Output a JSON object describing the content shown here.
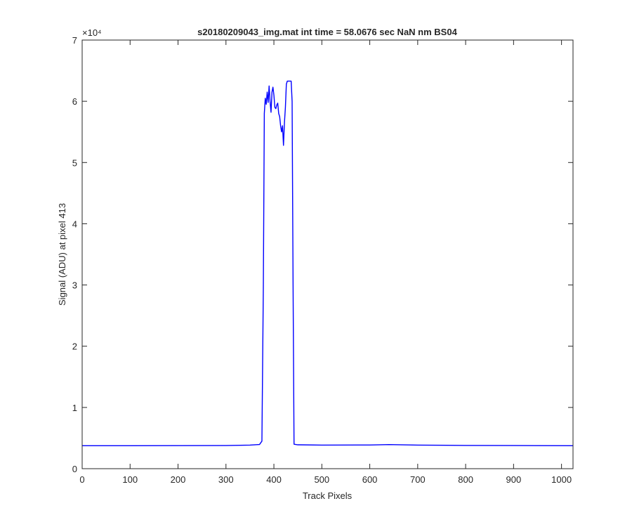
{
  "chart_data": {
    "type": "line",
    "title": "s20180209043_img.mat int time = 58.0676 sec  NaN nm BS04",
    "xlabel": "Track Pixels",
    "ylabel": "Signal (ADU) at pixel 413",
    "xlim": [
      0,
      1024
    ],
    "ylim": [
      0,
      70000
    ],
    "x_ticks": [
      0,
      100,
      200,
      300,
      400,
      500,
      600,
      700,
      800,
      900,
      1000
    ],
    "y_ticks": [
      0,
      1,
      2,
      3,
      4,
      5,
      6,
      7
    ],
    "y_exponent": "×10⁴",
    "grid": false,
    "line_color": "#0000ff",
    "series": [
      {
        "x": [
          0,
          100,
          200,
          300,
          350,
          370,
          375,
          378,
          380,
          382,
          384,
          386,
          388,
          390,
          392,
          394,
          396,
          398,
          400,
          402,
          404,
          406,
          408,
          410,
          412,
          414,
          416,
          418,
          420,
          422,
          424,
          426,
          428,
          430,
          432,
          434,
          436,
          438,
          440,
          442,
          450,
          500,
          600,
          640,
          650,
          700,
          800,
          900,
          1024
        ],
        "y": [
          3750,
          3750,
          3760,
          3780,
          3850,
          3950,
          4500,
          30000,
          58000,
          60500,
          59500,
          61500,
          59800,
          62500,
          60000,
          58200,
          61500,
          62300,
          61000,
          59000,
          58800,
          59400,
          59700,
          58000,
          57500,
          56000,
          55000,
          56000,
          52800,
          56500,
          59000,
          62800,
          63300,
          63300,
          63300,
          63300,
          63300,
          60000,
          30000,
          4000,
          3900,
          3850,
          3870,
          3940,
          3920,
          3850,
          3800,
          3780,
          3750
        ]
      }
    ]
  }
}
